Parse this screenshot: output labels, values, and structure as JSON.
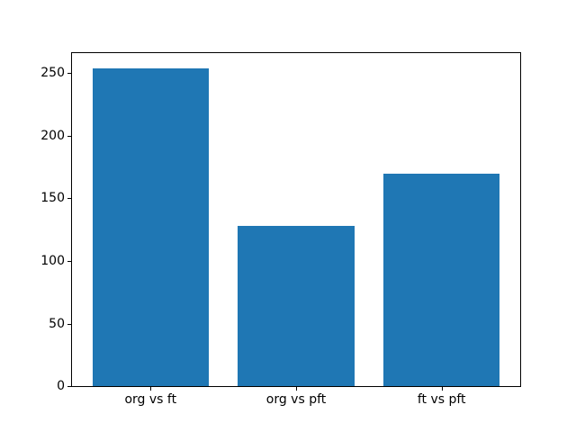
{
  "chart_data": {
    "type": "bar",
    "categories": [
      "org vs ft",
      "org vs pft",
      "ft vs pft"
    ],
    "values": [
      254,
      128,
      170
    ],
    "title": "",
    "xlabel": "",
    "ylabel": "",
    "ylim": [
      0,
      266
    ],
    "yticks": [
      0,
      50,
      100,
      150,
      200,
      250
    ],
    "bar_color": "#1f77b4",
    "spine_color": "#000000",
    "background_color": "#ffffff",
    "bar_width_fraction": 0.8,
    "grid": false,
    "legend": null
  }
}
